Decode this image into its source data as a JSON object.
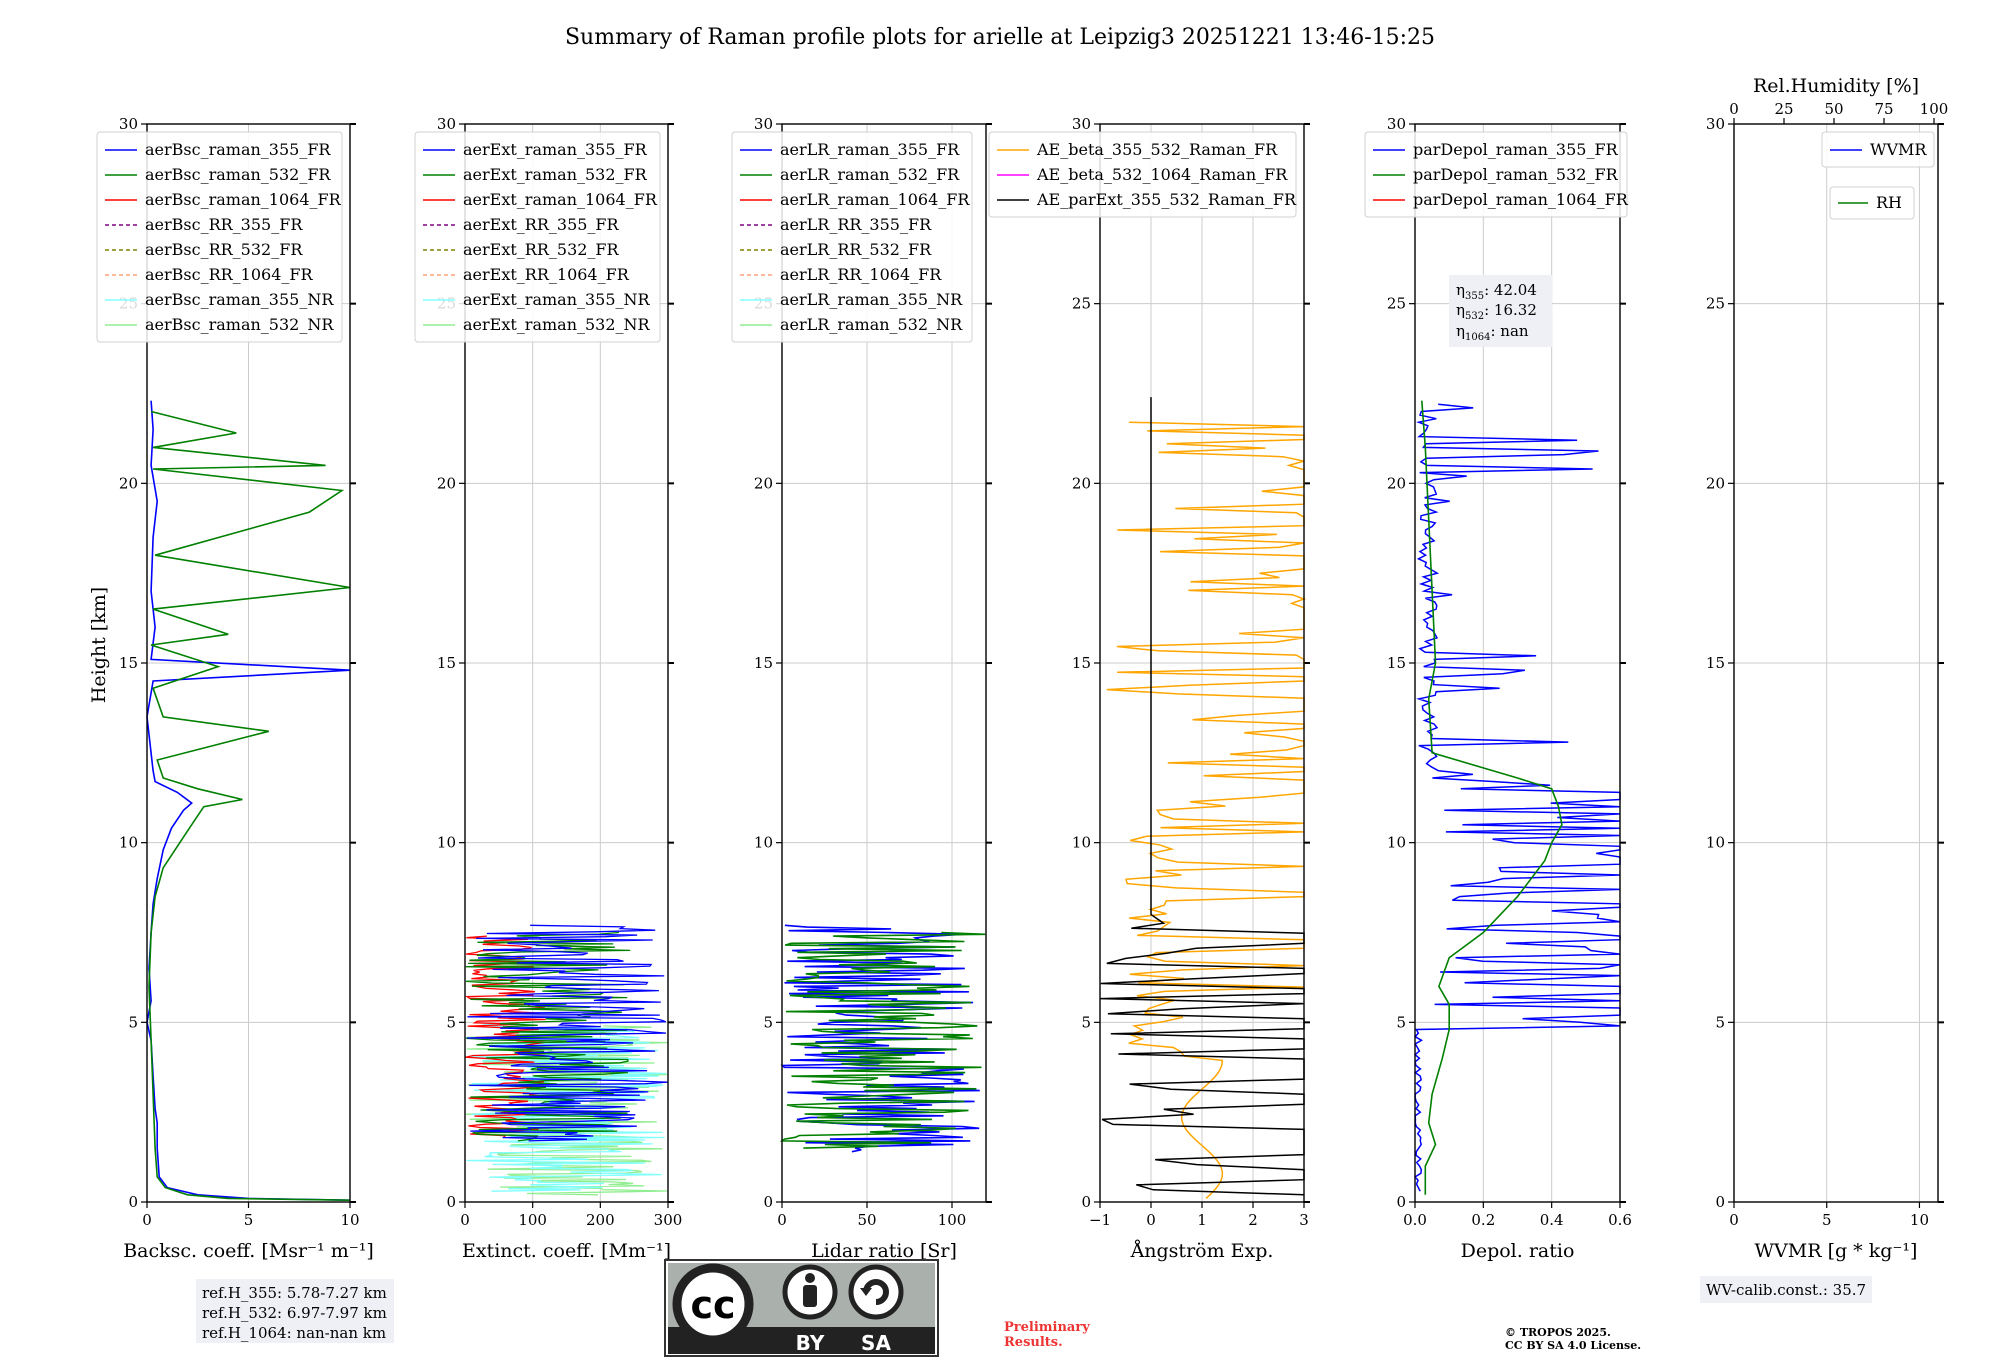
{
  "title": "Summary of Raman profile plots for arielle at Leipzig3 20251221 13:46-15:25",
  "ylabel": "Height [km]",
  "panels": [
    {
      "id": "bsc",
      "xlabel": "Backsc. coeff. [Msr⁻¹ m⁻¹]",
      "xlim": [
        0,
        10
      ],
      "xticks": [
        "0",
        "5",
        "10"
      ],
      "ylim": [
        0,
        30
      ],
      "yticks": [
        "0",
        "5",
        "10",
        "15",
        "20",
        "25",
        "30"
      ],
      "legend": [
        "aerBsc_raman_355_FR",
        "aerBsc_raman_532_FR",
        "aerBsc_raman_1064_FR",
        "aerBsc_RR_355_FR",
        "aerBsc_RR_532_FR",
        "aerBsc_RR_1064_FR",
        "aerBsc_raman_355_NR",
        "aerBsc_raman_532_NR"
      ]
    },
    {
      "id": "ext",
      "xlabel": "Extinct. coeff. [Mm⁻¹]",
      "xlim": [
        0,
        300
      ],
      "xticks": [
        "0",
        "100",
        "200",
        "300"
      ],
      "ylim": [
        0,
        30
      ],
      "yticks": [
        "0",
        "5",
        "10",
        "15",
        "20",
        "25",
        "30"
      ],
      "legend": [
        "aerExt_raman_355_FR",
        "aerExt_raman_532_FR",
        "aerExt_raman_1064_FR",
        "aerExt_RR_355_FR",
        "aerExt_RR_532_FR",
        "aerExt_RR_1064_FR",
        "aerExt_raman_355_NR",
        "aerExt_raman_532_NR"
      ]
    },
    {
      "id": "lr",
      "xlabel": "Lidar ratio [Sr]",
      "xlim": [
        0,
        120
      ],
      "xticks": [
        "0",
        "50",
        "100"
      ],
      "ylim": [
        0,
        30
      ],
      "yticks": [
        "0",
        "5",
        "10",
        "15",
        "20",
        "25",
        "30"
      ],
      "legend": [
        "aerLR_raman_355_FR",
        "aerLR_raman_532_FR",
        "aerLR_raman_1064_FR",
        "aerLR_RR_355_FR",
        "aerLR_RR_532_FR",
        "aerLR_RR_1064_FR",
        "aerLR_raman_355_NR",
        "aerLR_raman_532_NR"
      ]
    },
    {
      "id": "ae",
      "xlabel": "Ångström Exp.",
      "xlim": [
        -1,
        3
      ],
      "xticks": [
        "−1",
        "0",
        "1",
        "2",
        "3"
      ],
      "ylim": [
        0,
        30
      ],
      "yticks": [
        "0",
        "5",
        "10",
        "15",
        "20",
        "25",
        "30"
      ],
      "legend": [
        "AE_beta_355_532_Raman_FR",
        "AE_beta_532_1064_Raman_FR",
        "AE_parExt_355_532_Raman_FR"
      ]
    },
    {
      "id": "depol",
      "xlabel": "Depol. ratio",
      "xlim": [
        0,
        0.6
      ],
      "xticks": [
        "0.0",
        "0.2",
        "0.4",
        "0.6"
      ],
      "ylim": [
        0,
        30
      ],
      "yticks": [
        "0",
        "5",
        "10",
        "15",
        "20",
        "25",
        "30"
      ],
      "legend": [
        "parDepol_raman_355_FR",
        "parDepol_raman_532_FR",
        "parDepol_raman_1064_FR"
      ]
    },
    {
      "id": "wv",
      "xlabel": "WVMR [g * kg⁻¹]",
      "xlim": [
        0,
        11
      ],
      "xticks": [
        "0",
        "5",
        "10"
      ],
      "ylim": [
        0,
        30
      ],
      "yticks": [
        "0",
        "5",
        "10",
        "15",
        "20",
        "25",
        "30"
      ],
      "legend": [
        "WVMR"
      ],
      "legend2": [
        "RH"
      ],
      "top_axis_label": "Rel.Humidity [%]",
      "top_ticks": [
        "0",
        "25",
        "50",
        "75",
        "100"
      ]
    }
  ],
  "eta": {
    "e355": "42.04",
    "e532": "16.32",
    "e1064": "nan"
  },
  "ref_heights": [
    "ref.H_355: 5.78-7.27 km",
    "ref.H_532: 6.97-7.97 km",
    "ref.H_1064: nan-nan km"
  ],
  "wv_calib": "WV-calib.const.: 35.7",
  "license_badge": {
    "by": "BY",
    "sa": "SA",
    "cc": "cc"
  },
  "prelim": [
    "Preliminary",
    "Results."
  ],
  "copyright": [
    "© TROPOS 2025.",
    "CC BY SA 4.0 License."
  ],
  "colors": {
    "blue": "#0000ff",
    "green": "#008000",
    "red": "#ff0000",
    "purple": "#800080",
    "olive": "#808000",
    "salmon": "#ffa07a",
    "cyan": "#80ffff",
    "lightgreen": "#90ee90",
    "orange": "#ffa500",
    "magenta": "#ff00ff",
    "black": "#000000"
  },
  "chart_data": {
    "type": "line",
    "title": "Summary of Raman profile plots for arielle at Leipzig3 20251221 13:46-15:25",
    "ylabel": "Height [km]",
    "ylim": [
      0,
      30
    ],
    "panels": [
      {
        "xlabel": "Backsc. coeff. [Msr⁻¹ m⁻¹]",
        "xlim": [
          0,
          10
        ],
        "series": [
          {
            "name": "aerBsc_raman_355_FR",
            "color": "blue",
            "points": [
              [
                10,
                0.05
              ],
              [
                5,
                0.1
              ],
              [
                2.5,
                0.2
              ],
              [
                1,
                0.4
              ],
              [
                0.6,
                0.7
              ],
              [
                0.5,
                1.5
              ],
              [
                0.5,
                2.2
              ],
              [
                0.4,
                2.6
              ],
              [
                0.3,
                3.5
              ],
              [
                0.2,
                4.5
              ],
              [
                0,
                5
              ],
              [
                0.2,
                5.6
              ],
              [
                0.1,
                6.5
              ],
              [
                0.2,
                7.5
              ],
              [
                0.3,
                8.3
              ],
              [
                0.5,
                9
              ],
              [
                0.8,
                9.8
              ],
              [
                1.2,
                10.4
              ],
              [
                1.8,
                10.9
              ],
              [
                2.2,
                11.1
              ],
              [
                1.5,
                11.4
              ],
              [
                0.4,
                11.7
              ],
              [
                0.3,
                12
              ],
              [
                0,
                13.5
              ],
              [
                0.3,
                14.5
              ],
              [
                10,
                14.8
              ],
              [
                0.2,
                15.1
              ],
              [
                0.4,
                16
              ],
              [
                0.2,
                17
              ],
              [
                0.3,
                18.5
              ],
              [
                0.5,
                19.5
              ],
              [
                0.2,
                20.5
              ],
              [
                0.3,
                21.5
              ],
              [
                0.2,
                22.3
              ]
            ]
          },
          {
            "name": "aerBsc_raman_532_FR",
            "color": "green",
            "points": [
              [
                10,
                0.05
              ],
              [
                4,
                0.1
              ],
              [
                2,
                0.2
              ],
              [
                0.9,
                0.4
              ],
              [
                0.5,
                0.7
              ],
              [
                0.4,
                1.5
              ],
              [
                0.3,
                3
              ],
              [
                0.2,
                4.5
              ],
              [
                0.1,
                6
              ],
              [
                0.2,
                7.5
              ],
              [
                0.4,
                8.5
              ],
              [
                0.8,
                9.3
              ],
              [
                1.5,
                9.9
              ],
              [
                2.2,
                10.5
              ],
              [
                2.8,
                11
              ],
              [
                4.7,
                11.2
              ],
              [
                2.5,
                11.5
              ],
              [
                0.8,
                11.8
              ],
              [
                0.5,
                12.3
              ],
              [
                6,
                13.1
              ],
              [
                0.8,
                13.5
              ],
              [
                0.3,
                14.3
              ],
              [
                3.5,
                14.9
              ],
              [
                0.2,
                15.5
              ],
              [
                4,
                15.8
              ],
              [
                0.3,
                16.5
              ],
              [
                10,
                17.1
              ],
              [
                0.4,
                18
              ],
              [
                8,
                19.2
              ],
              [
                9.6,
                19.8
              ],
              [
                0.3,
                20.4
              ],
              [
                8.8,
                20.5
              ],
              [
                0.3,
                21
              ],
              [
                4.4,
                21.4
              ],
              [
                0.2,
                22
              ]
            ]
          }
        ]
      },
      {
        "xlabel": "Extinct. coeff. [Mm⁻¹]",
        "xlim": [
          0,
          300
        ],
        "series": [
          {
            "name": "aerExt_raman_355_FR",
            "color": "blue",
            "range_km": [
              1.7,
              7.7
            ],
            "typical_max": 300
          },
          {
            "name": "aerExt_raman_532_FR",
            "color": "green",
            "range_km": [
              1.7,
              7.5
            ],
            "typical_max": 250
          },
          {
            "name": "aerExt_raman_1064_FR",
            "color": "red",
            "range_km": [
              1.8,
              7.4
            ],
            "typical_max": 120
          },
          {
            "name": "aerExt_raman_355_NR",
            "color": "cyan",
            "range_km": [
              0.3,
              5.0
            ],
            "typical_max": 300
          },
          {
            "name": "aerExt_raman_532_NR",
            "color": "lightgreen",
            "range_km": [
              0.2,
              4.9
            ],
            "typical_max": 300
          }
        ]
      },
      {
        "xlabel": "Lidar ratio [Sr]",
        "xlim": [
          0,
          120
        ],
        "series": [
          {
            "name": "aerLR_raman_355_FR",
            "color": "blue",
            "range_km": [
              1.4,
              7.7
            ],
            "typical_max": 120
          },
          {
            "name": "aerLR_raman_532_FR",
            "color": "green",
            "range_km": [
              1.5,
              7.5
            ],
            "typical_max": 120
          }
        ]
      },
      {
        "xlabel": "Ångström Exp.",
        "xlim": [
          -1,
          3
        ],
        "series": [
          {
            "name": "AE_beta_355_532_Raman_FR",
            "color": "orange",
            "range_km": [
              0.1,
              21.7
            ]
          },
          {
            "name": "AE_parExt_355_532_Raman_FR",
            "color": "black",
            "range_km": [
              0.2,
              22.4
            ]
          }
        ]
      },
      {
        "xlabel": "Depol. ratio",
        "xlim": [
          0,
          0.6
        ],
        "annotations": [
          "η355: 42.04",
          "η532: 16.32",
          "η1064: nan"
        ],
        "series": [
          {
            "name": "parDepol_raman_355_FR",
            "color": "blue",
            "range_km": [
              0.3,
              22.3
            ]
          },
          {
            "name": "parDepol_raman_532_FR",
            "color": "green",
            "points": [
              [
                0.03,
                0.2
              ],
              [
                0.03,
                1
              ],
              [
                0.06,
                1.6
              ],
              [
                0.04,
                2.2
              ],
              [
                0.05,
                3
              ],
              [
                0.08,
                4
              ],
              [
                0.1,
                4.8
              ],
              [
                0.1,
                5.5
              ],
              [
                0.07,
                6
              ],
              [
                0.1,
                6.8
              ],
              [
                0.2,
                7.5
              ],
              [
                0.3,
                8.5
              ],
              [
                0.38,
                9.5
              ],
              [
                0.4,
                10
              ],
              [
                0.43,
                10.5
              ],
              [
                0.42,
                11
              ],
              [
                0.4,
                11.5
              ],
              [
                0.3,
                11.8
              ],
              [
                0.05,
                12.5
              ],
              [
                0.04,
                14
              ],
              [
                0.06,
                15
              ],
              [
                0.05,
                17
              ],
              [
                0.04,
                19
              ],
              [
                0.03,
                21
              ],
              [
                0.02,
                22.3
              ]
            ]
          }
        ]
      },
      {
        "xlabel": "WVMR [g * kg⁻¹]",
        "xlim": [
          0,
          11
        ],
        "top_axis": {
          "label": "Rel.Humidity [%]",
          "range": [
            0,
            100
          ]
        },
        "series": [
          {
            "name": "WVMR",
            "color": "blue",
            "points": []
          },
          {
            "name": "RH",
            "color": "green",
            "points": []
          }
        ]
      }
    ]
  }
}
